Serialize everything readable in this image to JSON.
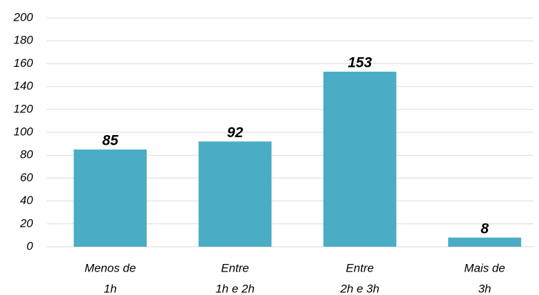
{
  "chart_data": {
    "type": "bar",
    "categories": [
      [
        "Menos de",
        "1h"
      ],
      [
        "Entre",
        "1h e 2h"
      ],
      [
        "Entre",
        "2h e 3h"
      ],
      [
        "Mais de",
        "3h"
      ]
    ],
    "values": [
      85,
      92,
      153,
      8
    ],
    "color": "#4bacc6",
    "ylim": [
      0,
      200
    ],
    "yticks": [
      0,
      20,
      40,
      60,
      80,
      100,
      120,
      140,
      160,
      180,
      200
    ],
    "grid": true
  }
}
